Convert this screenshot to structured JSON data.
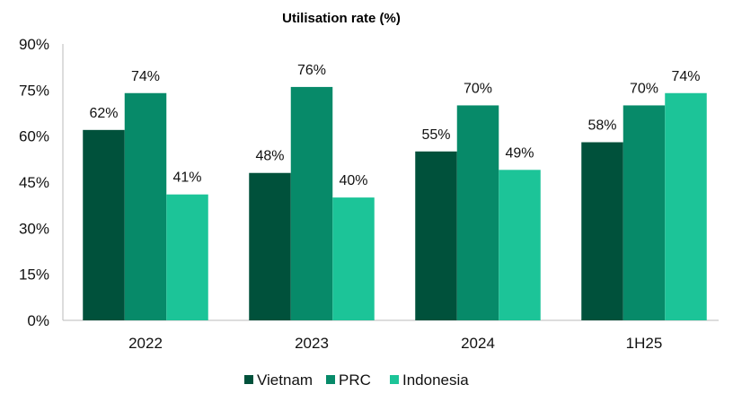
{
  "chart_data": {
    "type": "bar",
    "title": "Utilisation rate (%)",
    "categories": [
      "2022",
      "2023",
      "2024",
      "1H25"
    ],
    "series": [
      {
        "name": "Vietnam",
        "values": [
          62,
          48,
          55,
          58
        ],
        "color": "#00513b"
      },
      {
        "name": "PRC",
        "values": [
          74,
          76,
          70,
          70
        ],
        "color": "#078a69"
      },
      {
        "name": "Indonesia",
        "values": [
          41,
          40,
          49,
          74
        ],
        "color": "#1cc498"
      }
    ],
    "yticks": [
      "0%",
      "15%",
      "30%",
      "45%",
      "60%",
      "75%",
      "90%"
    ],
    "ylim": [
      0,
      90
    ],
    "grid": false,
    "legend_position": "bottom",
    "value_suffix": "%"
  }
}
